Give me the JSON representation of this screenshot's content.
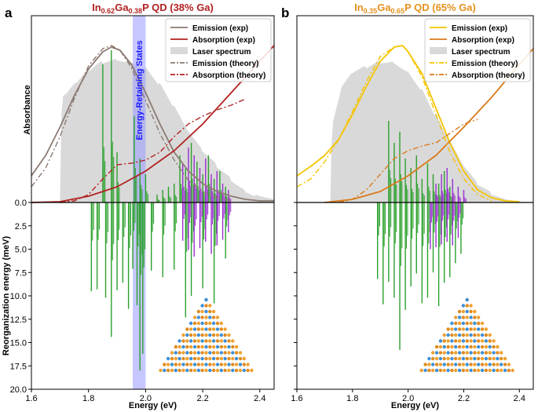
{
  "chart_data": [
    {
      "panel": "a",
      "type": "line",
      "title_parts": [
        {
          "text": "In",
          "sub": false
        },
        {
          "text": "0.62",
          "sub": true
        },
        {
          "text": "Ga",
          "sub": false
        },
        {
          "text": "0.38",
          "sub": true
        },
        {
          "text": "P QD (38% Ga)",
          "sub": false
        }
      ],
      "title_color": "#b22222",
      "xlabel": "Energy (eV)",
      "ylabel_top": "Absorbance",
      "ylabel_bottom": "Reorganization energy (meV)",
      "xlim": [
        1.6,
        2.45
      ],
      "xticks": [
        1.6,
        1.8,
        2.0,
        2.2,
        2.4
      ],
      "ylim_bottom": [
        0,
        20
      ],
      "yticks_bottom": [
        0.0,
        2.5,
        5.0,
        7.5,
        10.0,
        12.5,
        15.0,
        17.5,
        20.0
      ],
      "highlight_band": {
        "x_range": [
          1.955,
          2.0
        ],
        "label": "Energy-Retaining States",
        "color": "#9999ff"
      },
      "legend": [
        {
          "label": "Emission (exp)",
          "style": "solid",
          "color": "#8b7a72"
        },
        {
          "label": "Absorption (exp)",
          "style": "solid",
          "color": "#b22222"
        },
        {
          "label": "Laser spectrum",
          "style": "patch",
          "color": "#d9d9d9"
        },
        {
          "label": "Emission (theory)",
          "style": "dashdot",
          "color": "#8b7a72"
        },
        {
          "label": "Absorption (theory)",
          "style": "dashdot",
          "color": "#b22222"
        }
      ],
      "series": [
        {
          "name": "Emission (exp)",
          "x": [
            1.6,
            1.65,
            1.7,
            1.75,
            1.8,
            1.85,
            1.88,
            1.91,
            1.95,
            2.0,
            2.05,
            2.1,
            2.15,
            2.2,
            2.25,
            2.3,
            2.35,
            2.4,
            2.45
          ],
          "y": [
            0.17,
            0.3,
            0.48,
            0.68,
            0.85,
            0.96,
            0.99,
            0.97,
            0.88,
            0.7,
            0.5,
            0.32,
            0.2,
            0.12,
            0.07,
            0.04,
            0.02,
            0.01,
            0.01
          ]
        },
        {
          "name": "Absorption (exp)",
          "x": [
            1.6,
            1.7,
            1.8,
            1.9,
            2.0,
            2.1,
            2.2,
            2.3,
            2.4,
            2.45
          ],
          "y": [
            0.0,
            0.005,
            0.04,
            0.1,
            0.2,
            0.33,
            0.5,
            0.7,
            0.9,
            1.0
          ]
        },
        {
          "name": "Emission (theory)",
          "x": [
            1.6,
            1.65,
            1.7,
            1.75,
            1.8,
            1.85,
            1.88,
            1.91,
            1.95,
            2.0,
            2.05,
            2.1,
            2.15,
            2.2,
            2.25,
            2.3
          ],
          "y": [
            0.1,
            0.22,
            0.42,
            0.66,
            0.87,
            0.98,
            1.0,
            0.97,
            0.86,
            0.65,
            0.44,
            0.27,
            0.14,
            0.07,
            0.03,
            0.01
          ]
        },
        {
          "name": "Absorption (theory)",
          "x": [
            1.7,
            1.75,
            1.8,
            1.85,
            1.9,
            1.95,
            2.0,
            2.05,
            2.1,
            2.15,
            2.2,
            2.25,
            2.3,
            2.35
          ],
          "y": [
            0.0,
            0.01,
            0.05,
            0.15,
            0.24,
            0.25,
            0.27,
            0.32,
            0.42,
            0.5,
            0.55,
            0.59,
            0.62,
            0.66
          ]
        },
        {
          "name": "Laser spectrum",
          "x": [
            1.7,
            1.705,
            1.71,
            1.73,
            1.76,
            1.8,
            1.85,
            1.9,
            1.95,
            2.0,
            2.05,
            2.1,
            2.15,
            2.2,
            2.25,
            2.3,
            2.35,
            2.4,
            2.45
          ],
          "y": [
            0.0,
            0.55,
            0.66,
            0.7,
            0.76,
            0.84,
            0.9,
            0.92,
            0.9,
            0.86,
            0.75,
            0.6,
            0.44,
            0.32,
            0.23,
            0.15,
            0.08,
            0.04,
            0.02
          ]
        }
      ],
      "sticks_up": {
        "x": [
          1.85,
          1.88,
          1.9,
          1.96,
          1.98,
          2.0,
          2.04,
          2.06,
          2.08,
          2.1,
          2.12,
          2.14,
          2.16,
          2.18,
          2.2,
          2.22,
          2.24,
          2.26,
          2.28
        ],
        "y": [
          0.88,
          0.97,
          0.32,
          0.55,
          0.28,
          0.18,
          0.05,
          0.08,
          0.1,
          0.12,
          0.3,
          0.22,
          0.38,
          0.26,
          0.18,
          0.3,
          0.15,
          0.2,
          0.1
        ],
        "color": "#2ca02c"
      },
      "sticks_up2": {
        "x": [
          2.13,
          2.15,
          2.17,
          2.19,
          2.21,
          2.23,
          2.25,
          2.27,
          2.29
        ],
        "y": [
          0.25,
          0.35,
          0.3,
          0.22,
          0.28,
          0.18,
          0.2,
          0.12,
          0.08
        ],
        "color": "#9a2fcf"
      },
      "sticks_down": {
        "x": [
          1.81,
          1.83,
          1.86,
          1.88,
          1.9,
          1.92,
          1.94,
          1.955,
          1.97,
          1.98,
          1.99,
          2.02,
          2.06,
          2.1,
          2.14,
          2.16,
          2.2,
          2.24,
          2.28
        ],
        "y": [
          9.5,
          9.3,
          10.2,
          14.4,
          9.4,
          8.6,
          11.4,
          7.1,
          11.0,
          18.0,
          16.2,
          7.3,
          8.0,
          7.2,
          12.3,
          10.0,
          9.2,
          10.8,
          6.0
        ],
        "color": "#2ca02c"
      },
      "sticks_down2": {
        "x": [
          2.13,
          2.15,
          2.17,
          2.19,
          2.21,
          2.23,
          2.25,
          2.27,
          2.29
        ],
        "y": [
          4.1,
          5.1,
          5.8,
          4.9,
          4.2,
          5.5,
          4.6,
          4.0,
          3.2
        ],
        "color": "#9a2fcf"
      }
    },
    {
      "panel": "b",
      "type": "line",
      "title_parts": [
        {
          "text": "In",
          "sub": false
        },
        {
          "text": "0.35",
          "sub": true
        },
        {
          "text": "Ga",
          "sub": false
        },
        {
          "text": "0.65",
          "sub": true
        },
        {
          "text": "P QD (65% Ga)",
          "sub": false
        }
      ],
      "title_color": "#e6921e",
      "xlabel": "Energy (eV)",
      "xlim": [
        1.6,
        2.45
      ],
      "xticks": [
        1.6,
        1.8,
        2.0,
        2.2,
        2.4
      ],
      "ylim_bottom": [
        0,
        20
      ],
      "legend": [
        {
          "label": "Emission (exp)",
          "style": "solid",
          "color": "#f5c400"
        },
        {
          "label": "Absorption (exp)",
          "style": "solid",
          "color": "#d97a1a"
        },
        {
          "label": "Laser spectrum",
          "style": "patch",
          "color": "#d9d9d9"
        },
        {
          "label": "Emission (theory)",
          "style": "dashdot",
          "color": "#f5c400"
        },
        {
          "label": "Absorption (theory)",
          "style": "dashdot",
          "color": "#d97a1a"
        }
      ],
      "series": [
        {
          "name": "Emission (exp)",
          "x": [
            1.6,
            1.65,
            1.7,
            1.75,
            1.8,
            1.85,
            1.9,
            1.95,
            1.98,
            2.0,
            2.05,
            2.1,
            2.15,
            2.2,
            2.25,
            2.3,
            2.35,
            2.4
          ],
          "y": [
            0.17,
            0.23,
            0.3,
            0.4,
            0.56,
            0.74,
            0.9,
            0.99,
            1.0,
            0.96,
            0.82,
            0.6,
            0.38,
            0.2,
            0.08,
            0.03,
            0.01,
            0.005
          ]
        },
        {
          "name": "Absorption (exp)",
          "x": [
            1.7,
            1.8,
            1.9,
            2.0,
            2.1,
            2.2,
            2.3,
            2.4,
            2.45
          ],
          "y": [
            0.0,
            0.02,
            0.07,
            0.17,
            0.3,
            0.48,
            0.67,
            0.88,
            0.98
          ]
        },
        {
          "name": "Emission (theory)",
          "x": [
            1.6,
            1.65,
            1.7,
            1.75,
            1.8,
            1.85,
            1.9,
            1.95,
            1.98,
            2.0,
            2.05,
            2.1,
            2.15,
            2.2,
            2.25,
            2.3
          ],
          "y": [
            0.1,
            0.15,
            0.26,
            0.4,
            0.58,
            0.77,
            0.93,
            0.99,
            1.0,
            0.96,
            0.8,
            0.56,
            0.32,
            0.15,
            0.05,
            0.01
          ]
        },
        {
          "name": "Absorption (theory)",
          "x": [
            1.75,
            1.8,
            1.85,
            1.9,
            1.95,
            2.0,
            2.05,
            2.1,
            2.15,
            2.2,
            2.25
          ],
          "y": [
            0.0,
            0.02,
            0.08,
            0.18,
            0.28,
            0.33,
            0.36,
            0.38,
            0.44,
            0.5,
            0.53
          ]
        },
        {
          "name": "Laser spectrum",
          "x": [
            1.72,
            1.725,
            1.73,
            1.76,
            1.8,
            1.85,
            1.9,
            1.95,
            2.0,
            2.05,
            2.1,
            2.15,
            2.2,
            2.25,
            2.3,
            2.35,
            2.4,
            2.45
          ],
          "y": [
            0.0,
            0.38,
            0.5,
            0.72,
            0.82,
            0.86,
            0.9,
            0.9,
            0.84,
            0.72,
            0.55,
            0.38,
            0.22,
            0.11,
            0.05,
            0.02,
            0.005,
            0.0
          ]
        }
      ],
      "sticks_up": {
        "x": [
          1.93,
          1.95,
          1.97,
          1.99,
          2.01,
          2.03,
          2.05,
          2.07,
          2.09,
          2.11,
          2.13,
          2.15
        ],
        "y": [
          0.52,
          0.38,
          0.45,
          0.28,
          0.22,
          0.3,
          0.15,
          0.25,
          0.18,
          0.12,
          0.2,
          0.1
        ],
        "color": "#2ca02c"
      },
      "sticks_up2": {
        "x": [
          2.1,
          2.12,
          2.14,
          2.16,
          2.18,
          2.2
        ],
        "y": [
          0.12,
          0.18,
          0.22,
          0.15,
          0.1,
          0.08
        ],
        "color": "#9a2fcf"
      },
      "sticks_down": {
        "x": [
          1.89,
          1.91,
          1.93,
          1.95,
          1.97,
          1.99,
          2.01,
          2.03,
          2.05,
          2.07,
          2.09,
          2.11,
          2.13,
          2.15,
          2.17,
          2.19
        ],
        "y": [
          8.2,
          10.9,
          8.5,
          10.2,
          15.8,
          11.5,
          9.0,
          7.6,
          10.8,
          10.2,
          7.5,
          11.1,
          8.6,
          8.0,
          6.5,
          5.5
        ],
        "color": "#2ca02c"
      },
      "sticks_down2": {
        "x": [
          2.08,
          2.1,
          2.12,
          2.14,
          2.16,
          2.18
        ],
        "y": [
          5.0,
          4.8,
          4.5,
          4.2,
          4.6,
          3.8
        ],
        "color": "#9a2fcf"
      }
    }
  ]
}
